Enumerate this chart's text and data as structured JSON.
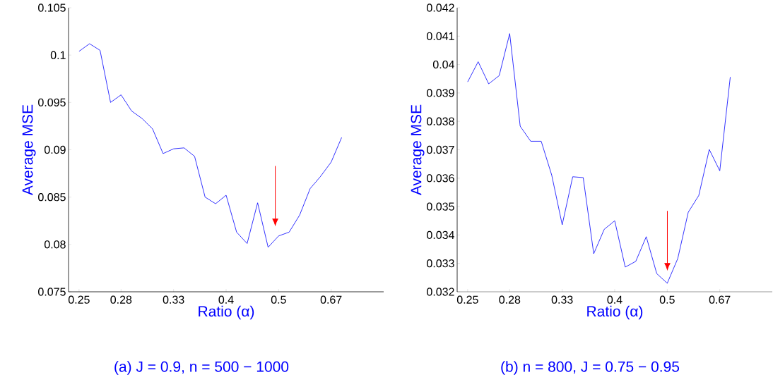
{
  "chart_data": [
    {
      "type": "line",
      "xlabel": "Ratio (α)",
      "ylabel": "Average MSE",
      "annotations": [
        "(a) J = 0.9, n = 500 − 1000"
      ],
      "categories": [
        "0.25",
        null,
        null,
        null,
        "0.28",
        null,
        null,
        null,
        null,
        "0.33",
        null,
        null,
        null,
        null,
        "0.4",
        null,
        null,
        null,
        null,
        "0.5",
        null,
        null,
        null,
        null,
        "0.67",
        null
      ],
      "series": [
        {
          "color": "#0000ff",
          "values": [
            0.1004,
            0.1012,
            0.1005,
            0.095,
            0.0958,
            0.0941,
            0.0933,
            0.0922,
            0.0896,
            0.0901,
            0.0902,
            0.0893,
            0.085,
            0.0843,
            0.0852,
            0.0813,
            0.0801,
            0.0844,
            0.0797,
            0.0809,
            0.0813,
            0.0831,
            0.0859,
            0.0872,
            0.0887,
            0.0913
          ]
        }
      ],
      "ylim": [
        0.075,
        0.105
      ],
      "yticks": [
        0.075,
        0.08,
        0.085,
        0.09,
        0.095,
        0.1,
        0.105
      ],
      "marker": "none",
      "line_style": "solid"
    },
    {
      "type": "line",
      "xlabel": "Ratio (α)",
      "ylabel": "Average MSE",
      "annotations": [
        "(b) n = 800, J = 0.75 − 0.95"
      ],
      "categories": [
        "0.25",
        null,
        null,
        null,
        "0.28",
        null,
        null,
        null,
        null,
        "0.33",
        null,
        null,
        null,
        null,
        "0.4",
        null,
        null,
        null,
        null,
        "0.5",
        null,
        null,
        null,
        null,
        "0.67",
        null
      ],
      "series": [
        {
          "color": "#0000ff",
          "values": [
            0.03939,
            0.0401,
            0.03932,
            0.03961,
            0.04109,
            0.03783,
            0.0373,
            0.0373,
            0.03611,
            0.03436,
            0.03605,
            0.03602,
            0.03334,
            0.0342,
            0.0345,
            0.03287,
            0.03307,
            0.03394,
            0.03264,
            0.0323,
            0.03317,
            0.0348,
            0.03539,
            0.03701,
            0.03626,
            0.03956
          ]
        }
      ],
      "ylim": [
        0.032,
        0.042
      ],
      "yticks": [
        0.032,
        0.033,
        0.034,
        0.035,
        0.036,
        0.037,
        0.038,
        0.039,
        0.04,
        0.041,
        0.042
      ],
      "marker": "none",
      "line_style": "solid"
    }
  ]
}
